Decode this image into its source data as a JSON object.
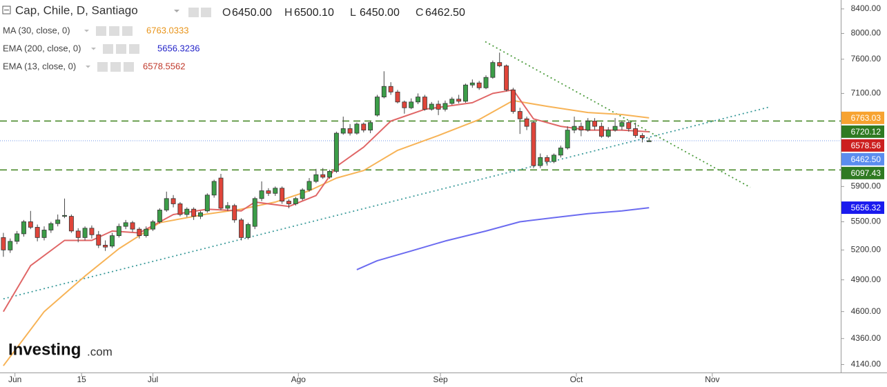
{
  "chart_data": {
    "type": "candlestick",
    "title": "Cap, Chile, D, Santiago",
    "ohlc": [
      {
        "key": "O",
        "value": "6450.00"
      },
      {
        "key": "H",
        "value": "6500.10"
      },
      {
        "key": "L",
        "value": "6450.00"
      },
      {
        "key": "C",
        "value": "6462.50"
      }
    ],
    "log_scale": true,
    "grid": false,
    "up_color": "#3c9d48",
    "down_color": "#e0453a",
    "ylim": [
      4075,
      8550
    ],
    "xlim": [
      -0.5,
      123.2
    ],
    "yticks": [
      {
        "value": 4140,
        "label": "4140.00"
      },
      {
        "value": 4360,
        "label": "4360.00"
      },
      {
        "value": 4600,
        "label": "4600.00"
      },
      {
        "value": 4900,
        "label": "4900.00"
      },
      {
        "value": 5200,
        "label": "5200.00"
      },
      {
        "value": 5500,
        "label": "5500.00"
      },
      {
        "value": 5900,
        "label": "5900.00"
      },
      {
        "value": 7100,
        "label": "7100.00"
      },
      {
        "value": 7600,
        "label": "7600.00"
      },
      {
        "value": 8000,
        "label": "8000.00"
      },
      {
        "value": 8400,
        "label": "8400.00"
      }
    ],
    "xticks": [
      {
        "value": 1.7,
        "label": "Jun"
      },
      {
        "value": 11.5,
        "label": "15"
      },
      {
        "value": 22,
        "label": "Jul"
      },
      {
        "value": 43.4,
        "label": "Ago"
      },
      {
        "value": 64.3,
        "label": "Sep"
      },
      {
        "value": 84.3,
        "label": "Oct"
      },
      {
        "value": 104.3,
        "label": "Nov"
      }
    ],
    "x": [
      0,
      1,
      2,
      3,
      4,
      5,
      6,
      7,
      8,
      9,
      10,
      11,
      12,
      13,
      14,
      15,
      16,
      17,
      18,
      19,
      20,
      21,
      22,
      23,
      24,
      25,
      26,
      27,
      28,
      29,
      30,
      31,
      32,
      33,
      34,
      35,
      36,
      37,
      38,
      39,
      40,
      41,
      42,
      43,
      44,
      45,
      46,
      47,
      48,
      49,
      50,
      51,
      52,
      53,
      54,
      55,
      56,
      57,
      58,
      59,
      60,
      61,
      62,
      63,
      64,
      65,
      66,
      67,
      68,
      69,
      70,
      71,
      72,
      73,
      74,
      75,
      76,
      77,
      78,
      79,
      80,
      81,
      82,
      83,
      84,
      85,
      86,
      87,
      88,
      89,
      90,
      91,
      92,
      93,
      94,
      95
    ],
    "open": [
      5330,
      5200,
      5290,
      5370,
      5500,
      5440,
      5330,
      5410,
      5480,
      5560,
      5560,
      5400,
      5330,
      5430,
      5360,
      5250,
      5240,
      5350,
      5450,
      5490,
      5420,
      5350,
      5420,
      5500,
      5630,
      5760,
      5700,
      5580,
      5640,
      5560,
      5620,
      5800,
      6000,
      5650,
      5680,
      5520,
      5330,
      5450,
      5760,
      5850,
      5820,
      5880,
      5730,
      5700,
      5760,
      5860,
      5960,
      6040,
      6010,
      6080,
      6560,
      6620,
      6560,
      6680,
      6600,
      6800,
      7050,
      7200,
      7120,
      6980,
      6900,
      6980,
      7050,
      6880,
      6950,
      6880,
      6960,
      7020,
      6990,
      7220,
      7250,
      7180,
      7330,
      7550,
      7500,
      7150,
      6850,
      6750,
      6700,
      6150,
      6250,
      6200,
      6280,
      6370,
      6600,
      6650,
      6600,
      6720,
      6650,
      6520,
      6600,
      6650,
      6700,
      6620,
      6530,
      6450
    ],
    "high": [
      5380,
      5320,
      5400,
      5520,
      5620,
      5470,
      5450,
      5500,
      5580,
      5760,
      5580,
      5430,
      5450,
      5460,
      5400,
      5300,
      5380,
      5480,
      5520,
      5510,
      5440,
      5450,
      5520,
      5650,
      5840,
      5800,
      5720,
      5660,
      5660,
      5620,
      5820,
      5980,
      6050,
      5720,
      5700,
      5540,
      5490,
      5780,
      5960,
      5880,
      5900,
      5900,
      5750,
      5780,
      5880,
      6000,
      6110,
      6120,
      6100,
      6580,
      6780,
      6680,
      6700,
      6700,
      6720,
      7080,
      7420,
      7260,
      7150,
      7000,
      7030,
      7100,
      7080,
      6980,
      7000,
      7000,
      7050,
      7080,
      7240,
      7300,
      7280,
      7360,
      7580,
      7700,
      7520,
      7180,
      6900,
      6780,
      6720,
      6300,
      6280,
      6300,
      6400,
      6650,
      6780,
      6700,
      6760,
      6760,
      6700,
      6640,
      6760,
      6720,
      6730,
      6700,
      6560,
      6500.1
    ],
    "low": [
      5130,
      5170,
      5260,
      5340,
      5420,
      5290,
      5300,
      5380,
      5450,
      5540,
      5380,
      5280,
      5300,
      5320,
      5220,
      5190,
      5220,
      5330,
      5420,
      5390,
      5320,
      5330,
      5400,
      5480,
      5610,
      5660,
      5560,
      5550,
      5520,
      5530,
      5600,
      5770,
      5630,
      5620,
      5490,
      5300,
      5310,
      5420,
      5730,
      5790,
      5790,
      5700,
      5650,
      5680,
      5740,
      5840,
      5940,
      5990,
      5990,
      6060,
      6540,
      6530,
      6540,
      6570,
      6560,
      6780,
      7030,
      7080,
      6960,
      6820,
      6880,
      6950,
      6860,
      6860,
      6800,
      6850,
      6940,
      6960,
      6970,
      7180,
      7150,
      7160,
      7310,
      7480,
      7130,
      6820,
      6550,
      6600,
      6120,
      6120,
      6150,
      6180,
      6250,
      6350,
      6560,
      6520,
      6580,
      6600,
      6500,
      6500,
      6580,
      6600,
      6580,
      6500,
      6440,
      6450
    ],
    "close": [
      5200,
      5290,
      5370,
      5500,
      5440,
      5330,
      5410,
      5480,
      5520,
      5570,
      5400,
      5330,
      5430,
      5360,
      5250,
      5230,
      5350,
      5450,
      5490,
      5420,
      5350,
      5420,
      5500,
      5630,
      5760,
      5700,
      5580,
      5640,
      5560,
      5600,
      5800,
      5960,
      5650,
      5680,
      5520,
      5330,
      5470,
      5760,
      5850,
      5820,
      5880,
      5730,
      5700,
      5760,
      5860,
      5960,
      6040,
      6010,
      6080,
      6560,
      6620,
      6560,
      6680,
      6600,
      6700,
      7050,
      7200,
      7120,
      6980,
      6900,
      6980,
      7050,
      6880,
      6950,
      6880,
      6960,
      7020,
      6990,
      7220,
      7250,
      7180,
      7330,
      7550,
      7500,
      7150,
      6850,
      6750,
      6650,
      6150,
      6250,
      6200,
      6280,
      6370,
      6600,
      6650,
      6600,
      6720,
      6650,
      6520,
      6600,
      6650,
      6700,
      6620,
      6530,
      6500,
      6462.5
    ],
    "series": [
      {
        "name": "MA (30, close, 0)",
        "legend_value": "6763.0333",
        "color": "#f7b356",
        "x": [
          0,
          6,
          12,
          17,
          23,
          30,
          35,
          40,
          45,
          49,
          53,
          58,
          64,
          70,
          75,
          80,
          86,
          91,
          95
        ],
        "values": [
          4130,
          4600,
          4937,
          5213,
          5490,
          5586,
          5640,
          5720,
          5850,
          6000,
          6090,
          6340,
          6530,
          6740,
          7000,
          6920,
          6835,
          6808,
          6763
        ]
      },
      {
        "name": "EMA (200, close, 0)",
        "legend_value": "5656.3236",
        "color": "#6b6bf0",
        "x": [
          52,
          55,
          60,
          65,
          71,
          76,
          81,
          86,
          91,
          95
        ],
        "values": [
          5000,
          5090,
          5190,
          5293,
          5400,
          5500,
          5545,
          5590,
          5620,
          5656
        ]
      },
      {
        "name": "EMA (13, close, 0)",
        "legend_value": "6578.5562",
        "color": "#e06666",
        "x": [
          0,
          4,
          9,
          13,
          16,
          20,
          25,
          30,
          35,
          37,
          42,
          46,
          49,
          53,
          57,
          62,
          69,
          72,
          75,
          78,
          82,
          86,
          91,
          95
        ],
        "values": [
          4600,
          5040,
          5300,
          5300,
          5400,
          5380,
          5580,
          5640,
          5620,
          5720,
          5670,
          5795,
          6140,
          6380,
          6720,
          6880,
          6970,
          7100,
          7150,
          6750,
          6650,
          6600,
          6600,
          6578.56
        ]
      }
    ],
    "legend_colors": [
      "#e8941a",
      "#2323c8",
      "#c0392b"
    ],
    "trendlines": [
      {
        "x": [
          0,
          112.7
        ],
        "values": [
          4718,
          6910
        ],
        "color": "#3a9a9a"
      },
      {
        "x": [
          70.9,
          109.9
        ],
        "values": [
          7870,
          5890
        ],
        "color": "#4a9a3a"
      }
    ],
    "hlines": [
      {
        "value": 6720.12,
        "color": "#4a8a2a"
      },
      {
        "value": 6097.43,
        "color": "#4a8a2a"
      }
    ],
    "last_price": {
      "value": 6462.5,
      "color": "#6f95e8"
    },
    "price_labels": [
      {
        "value": 6763.03,
        "label": "6763.03",
        "color": "#f7a331"
      },
      {
        "value": 6720.12,
        "label": "6720.12",
        "color": "#2f7a22"
      },
      {
        "value": 6578.56,
        "label": "6578.56",
        "color": "#cc1f1f"
      },
      {
        "value": 6462.5,
        "label": "6462.50",
        "color": "#5b8def"
      },
      {
        "value": 6097.43,
        "label": "6097.43",
        "color": "#2f7a22"
      },
      {
        "value": 5656.32,
        "label": "5656.32",
        "color": "#1a1aee"
      }
    ],
    "logo": {
      "name": "Investing",
      "suffix": ".com"
    }
  }
}
